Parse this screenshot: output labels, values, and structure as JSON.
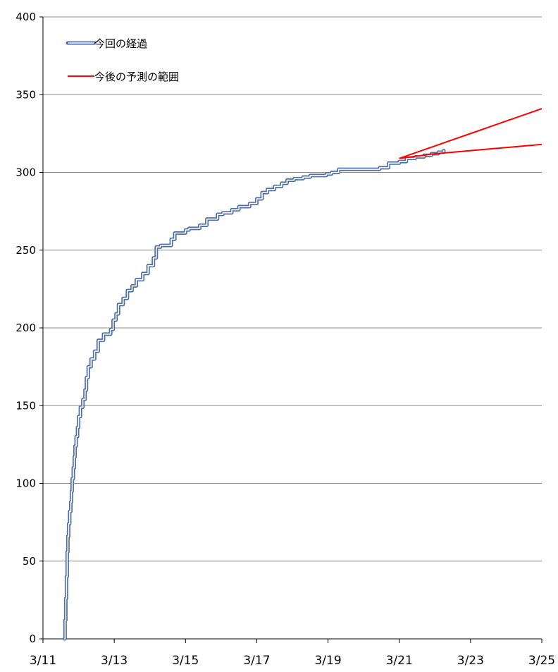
{
  "chart_data": {
    "type": "line",
    "title": "",
    "xlabel": "",
    "ylabel": "",
    "x_axis": {
      "unit": "day of March",
      "range": [
        11,
        25
      ],
      "ticks": [
        11,
        13,
        15,
        17,
        19,
        21,
        23,
        25
      ],
      "tick_labels": [
        "3/11",
        "3/13",
        "3/15",
        "3/17",
        "3/19",
        "3/21",
        "3/23",
        "3/25"
      ]
    },
    "y_axis": {
      "range": [
        0,
        400
      ],
      "ticks": [
        0,
        50,
        100,
        150,
        200,
        250,
        300,
        350,
        400
      ],
      "tick_labels": [
        "0",
        "50",
        "100",
        "150",
        "200",
        "250",
        "300",
        "350",
        "400"
      ]
    },
    "grid": "horizontal",
    "legend": {
      "placement": "top-left",
      "entries": [
        {
          "label": "今回の経過",
          "color": "#4f6fa5",
          "style": "double-line"
        },
        {
          "label": "今後の予測の範囲",
          "color": "#ff0000",
          "style": "line"
        }
      ]
    },
    "series": [
      {
        "name": "今回の経過",
        "color": "#4f6fa5",
        "step": true,
        "points": [
          [
            11.6,
            0
          ],
          [
            11.62,
            12
          ],
          [
            11.64,
            26
          ],
          [
            11.66,
            40
          ],
          [
            11.68,
            56
          ],
          [
            11.7,
            66
          ],
          [
            11.72,
            74
          ],
          [
            11.75,
            82
          ],
          [
            11.78,
            88
          ],
          [
            11.8,
            95
          ],
          [
            11.82,
            103
          ],
          [
            11.85,
            110
          ],
          [
            11.88,
            117
          ],
          [
            11.9,
            124
          ],
          [
            11.93,
            130
          ],
          [
            11.97,
            136
          ],
          [
            12.0,
            143
          ],
          [
            12.05,
            149
          ],
          [
            12.12,
            154
          ],
          [
            12.18,
            160
          ],
          [
            12.22,
            168
          ],
          [
            12.27,
            175
          ],
          [
            12.35,
            180
          ],
          [
            12.45,
            185
          ],
          [
            12.55,
            192
          ],
          [
            12.7,
            196
          ],
          [
            12.9,
            199
          ],
          [
            12.97,
            205
          ],
          [
            13.05,
            209
          ],
          [
            13.12,
            215
          ],
          [
            13.25,
            219
          ],
          [
            13.37,
            224
          ],
          [
            13.5,
            227
          ],
          [
            13.62,
            231
          ],
          [
            13.8,
            235
          ],
          [
            13.95,
            240
          ],
          [
            14.1,
            245
          ],
          [
            14.18,
            252
          ],
          [
            14.3,
            253
          ],
          [
            14.6,
            257
          ],
          [
            14.7,
            261
          ],
          [
            15.0,
            263
          ],
          [
            15.1,
            264
          ],
          [
            15.4,
            266
          ],
          [
            15.6,
            270
          ],
          [
            15.9,
            273
          ],
          [
            16.05,
            274
          ],
          [
            16.3,
            276
          ],
          [
            16.5,
            278
          ],
          [
            16.8,
            280
          ],
          [
            17.0,
            283
          ],
          [
            17.15,
            287
          ],
          [
            17.3,
            289
          ],
          [
            17.5,
            291
          ],
          [
            17.7,
            293
          ],
          [
            17.85,
            295
          ],
          [
            18.05,
            296
          ],
          [
            18.3,
            297
          ],
          [
            18.5,
            298
          ],
          [
            18.95,
            299
          ],
          [
            19.1,
            300
          ],
          [
            19.3,
            302
          ],
          [
            20.0,
            302
          ],
          [
            20.45,
            303
          ],
          [
            20.7,
            306
          ],
          [
            21.0,
            307
          ],
          [
            21.2,
            309
          ],
          [
            21.45,
            310
          ],
          [
            21.7,
            311
          ],
          [
            21.9,
            312
          ],
          [
            22.1,
            313
          ],
          [
            22.25,
            314
          ]
        ]
      },
      {
        "name": "今後の予測の範囲 (上限)",
        "color": "#ff0000",
        "step": false,
        "points": [
          [
            21.0,
            309
          ],
          [
            21.5,
            313
          ],
          [
            22.0,
            317
          ],
          [
            22.5,
            321
          ],
          [
            23.0,
            325
          ],
          [
            23.5,
            329
          ],
          [
            24.0,
            333
          ],
          [
            24.5,
            337
          ],
          [
            25.0,
            341
          ]
        ]
      },
      {
        "name": "今後の予測の範囲 (下限)",
        "color": "#ff0000",
        "step": false,
        "points": [
          [
            21.0,
            309
          ],
          [
            21.5,
            310.5
          ],
          [
            22.0,
            312
          ],
          [
            22.5,
            313
          ],
          [
            23.0,
            314
          ],
          [
            23.5,
            315
          ],
          [
            24.0,
            316
          ],
          [
            24.5,
            317
          ],
          [
            25.0,
            318
          ]
        ]
      }
    ]
  }
}
